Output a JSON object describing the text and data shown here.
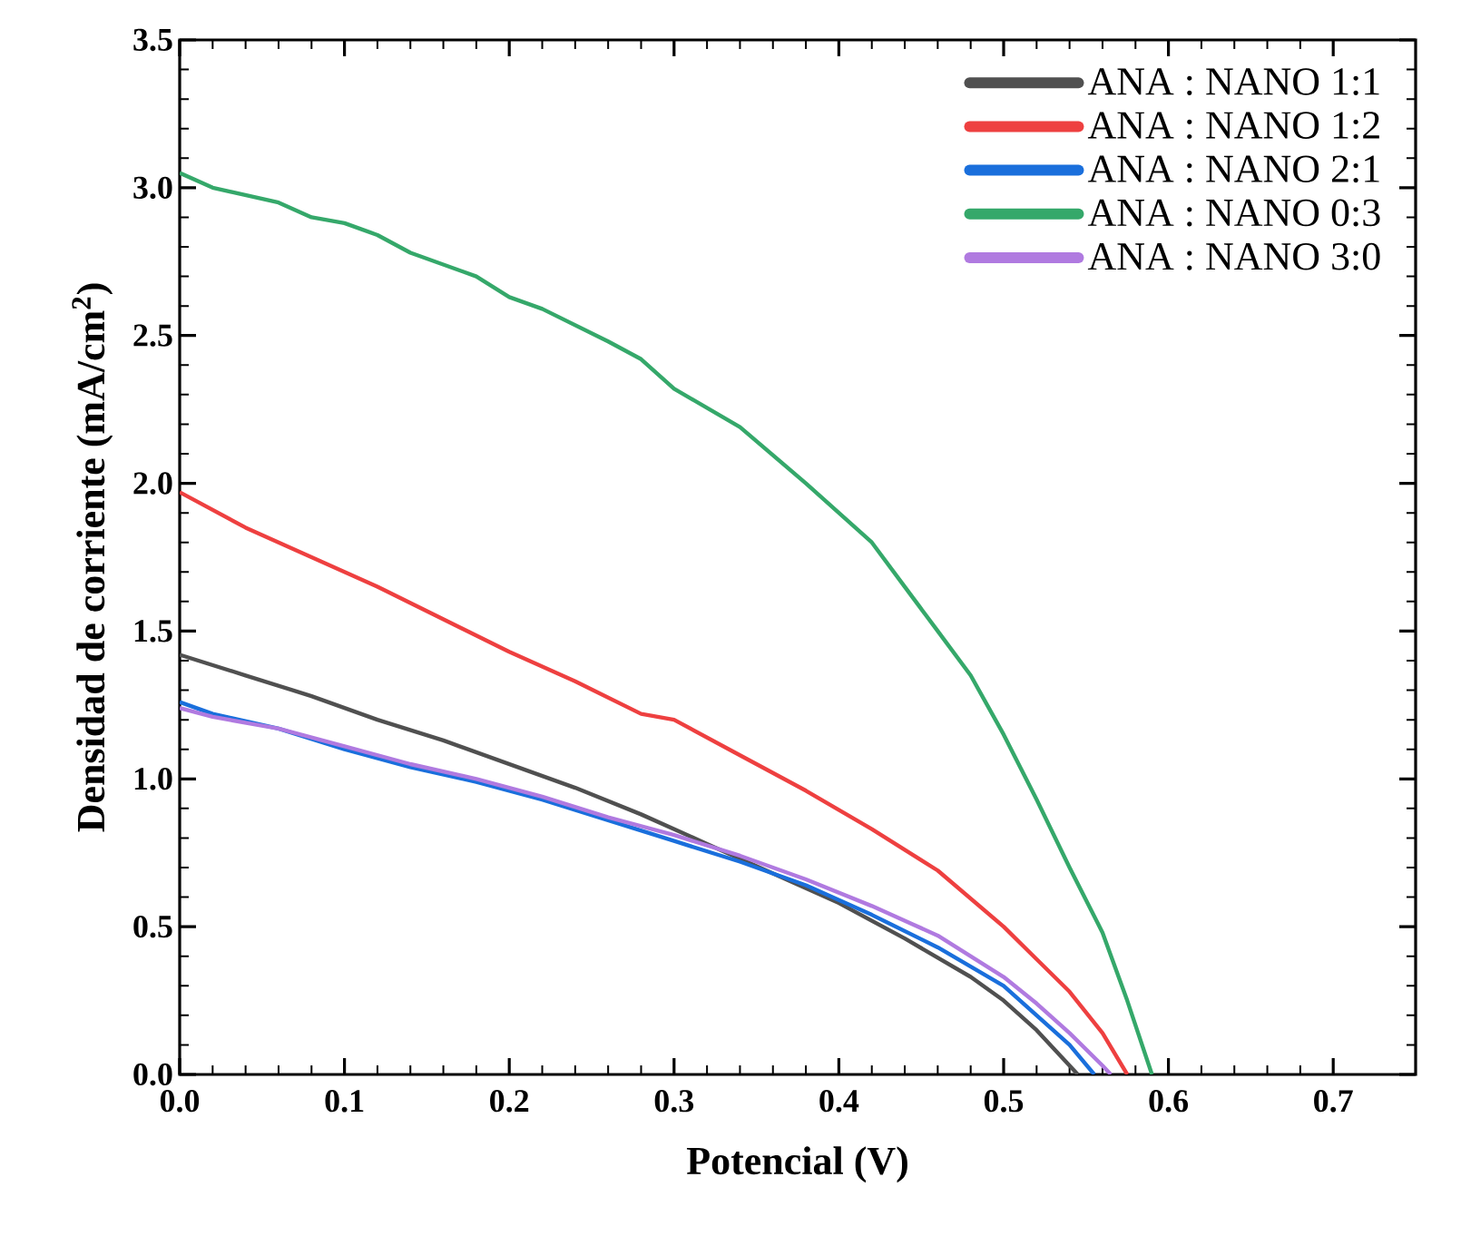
{
  "chart_data": {
    "type": "line",
    "xlabel": "Potencial (V)",
    "ylabel": "Densidad de corriente (mA/cm$^{2}$)",
    "xlim": [
      0,
      0.75
    ],
    "ylim": [
      0,
      3.5
    ],
    "xticks": [
      {
        "value": 0,
        "label": "0.0"
      },
      {
        "value": 0.1,
        "label": "0.1"
      },
      {
        "value": 0.2,
        "label": "0.2"
      },
      {
        "value": 0.3,
        "label": "0.3"
      },
      {
        "value": 0.4,
        "label": "0.4"
      },
      {
        "value": 0.5,
        "label": "0.5"
      },
      {
        "value": 0.6,
        "label": "0.6"
      },
      {
        "value": 0.7,
        "label": "0.7"
      }
    ],
    "yticks": [
      {
        "value": 0,
        "label": "0.0"
      },
      {
        "value": 0.5,
        "label": "0.5"
      },
      {
        "value": 1,
        "label": "1.0"
      },
      {
        "value": 1.5,
        "label": "1.5"
      },
      {
        "value": 2,
        "label": "2.0"
      },
      {
        "value": 2.5,
        "label": "2.5"
      },
      {
        "value": 3,
        "label": "3.0"
      },
      {
        "value": 3.5,
        "label": "3.5"
      }
    ],
    "grid": false,
    "legend": "top right",
    "marker": "none",
    "line_style": "solid",
    "series": [
      {
        "name": "ANA : NANO 1:1",
        "color": "#505050",
        "x": [
          0,
          0.04,
          0.08,
          0.12,
          0.16,
          0.2,
          0.24,
          0.28,
          0.32,
          0.36,
          0.4,
          0.44,
          0.48,
          0.5,
          0.52,
          0.54,
          0.545
        ],
        "values": [
          1.42,
          1.35,
          1.28,
          1.2,
          1.13,
          1.05,
          0.97,
          0.88,
          0.78,
          0.68,
          0.58,
          0.46,
          0.33,
          0.25,
          0.15,
          0.03,
          0
        ]
      },
      {
        "name": "ANA : NANO 1:2",
        "color": "#ee4040",
        "x": [
          0,
          0.04,
          0.08,
          0.12,
          0.16,
          0.2,
          0.24,
          0.28,
          0.3,
          0.34,
          0.38,
          0.42,
          0.46,
          0.5,
          0.52,
          0.54,
          0.56,
          0.575
        ],
        "values": [
          1.97,
          1.85,
          1.75,
          1.65,
          1.54,
          1.43,
          1.33,
          1.22,
          1.2,
          1.08,
          0.96,
          0.83,
          0.69,
          0.5,
          0.39,
          0.28,
          0.14,
          0
        ]
      },
      {
        "name": "ANA : NANO 2:1",
        "color": "#1a6fdc",
        "x": [
          0,
          0.02,
          0.06,
          0.1,
          0.14,
          0.18,
          0.22,
          0.26,
          0.3,
          0.34,
          0.38,
          0.42,
          0.46,
          0.5,
          0.52,
          0.54,
          0.555
        ],
        "values": [
          1.26,
          1.22,
          1.17,
          1.1,
          1.04,
          0.99,
          0.93,
          0.86,
          0.79,
          0.72,
          0.64,
          0.54,
          0.43,
          0.3,
          0.2,
          0.1,
          0
        ]
      },
      {
        "name": "ANA : NANO 0:3",
        "color": "#35a86a",
        "x": [
          0,
          0.02,
          0.06,
          0.08,
          0.1,
          0.12,
          0.14,
          0.18,
          0.2,
          0.22,
          0.26,
          0.28,
          0.3,
          0.34,
          0.38,
          0.42,
          0.44,
          0.46,
          0.48,
          0.5,
          0.52,
          0.54,
          0.56,
          0.575,
          0.59
        ],
        "values": [
          3.05,
          3.0,
          2.95,
          2.9,
          2.88,
          2.84,
          2.78,
          2.7,
          2.63,
          2.59,
          2.48,
          2.42,
          2.32,
          2.19,
          2.0,
          1.8,
          1.65,
          1.5,
          1.35,
          1.15,
          0.93,
          0.7,
          0.48,
          0.25,
          0
        ]
      },
      {
        "name": "ANA : NANO 3:0",
        "color": "#b07ae0",
        "x": [
          0,
          0.02,
          0.06,
          0.1,
          0.14,
          0.18,
          0.22,
          0.26,
          0.3,
          0.34,
          0.38,
          0.42,
          0.46,
          0.5,
          0.52,
          0.54,
          0.56,
          0.565
        ],
        "values": [
          1.24,
          1.21,
          1.17,
          1.11,
          1.05,
          1.0,
          0.94,
          0.87,
          0.81,
          0.74,
          0.66,
          0.57,
          0.47,
          0.33,
          0.24,
          0.14,
          0.03,
          0
        ]
      }
    ]
  }
}
